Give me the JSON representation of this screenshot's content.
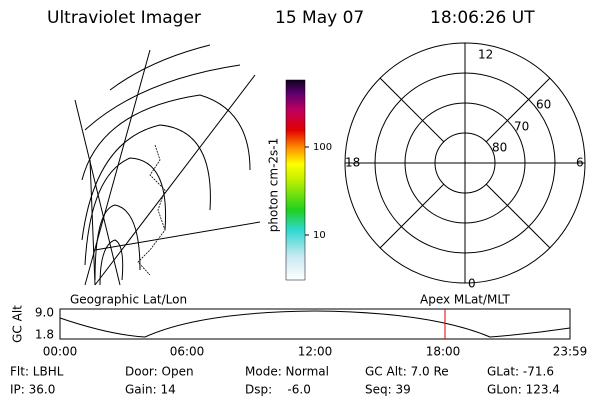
{
  "header": {
    "instrument": "Ultraviolet Imager",
    "date": "15 May 07",
    "time": "18:06:26 UT"
  },
  "colorbar": {
    "label": "photon cm-2s-1",
    "ticks": [
      "100",
      "10"
    ]
  },
  "polar": {
    "mlt_labels": [
      "12",
      "18",
      "6",
      "0"
    ],
    "mlat_labels": [
      "60",
      "70",
      "80"
    ]
  },
  "timeline": {
    "left_label": "Geographic Lat/Lon",
    "right_label": "Apex MLat/MLT",
    "axis_label": "GC Alt",
    "alt_ticks": [
      "9.0",
      "1.8"
    ],
    "time_ticks": [
      "00:00",
      "06:00",
      "12:00",
      "18:00",
      "23:59"
    ]
  },
  "footer": {
    "rows": [
      [
        "Flt: LBHL",
        "Door: Open",
        "Mode: Normal",
        "GC Alt: 7.0 Re",
        "GLat: -71.6"
      ],
      [
        "IP: 36.0",
        "Gain: 14",
        "Dsp:    -6.0",
        "Seq: 39",
        "GLon: 123.4"
      ]
    ]
  }
}
